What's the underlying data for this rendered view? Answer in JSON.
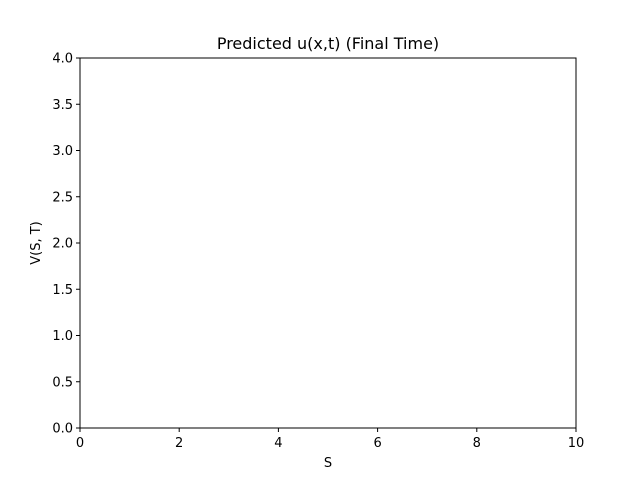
{
  "chart_data": {
    "type": "line",
    "title": "Predicted u(x,t) (Final Time)",
    "xlabel": "S",
    "ylabel": "V(S, T)",
    "xlim": [
      0,
      10
    ],
    "ylim": [
      0.0,
      4.0
    ],
    "x_ticks": [
      0,
      2,
      4,
      6,
      8,
      10
    ],
    "x_tick_labels": [
      "0",
      "2",
      "4",
      "6",
      "8",
      "10"
    ],
    "y_ticks": [
      0.0,
      0.5,
      1.0,
      1.5,
      2.0,
      2.5,
      3.0,
      3.5,
      4.0
    ],
    "y_tick_labels": [
      "0.0",
      "0.5",
      "1.0",
      "1.5",
      "2.0",
      "2.5",
      "3.0",
      "3.5",
      "4.0"
    ],
    "series": [],
    "grid": false,
    "legend": "none"
  }
}
